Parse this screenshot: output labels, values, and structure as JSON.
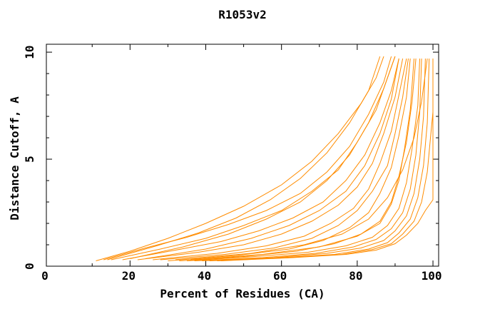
{
  "chart_data": {
    "type": "line",
    "title": "R1053v2",
    "xlabel": "Percent of Residues (CA)",
    "ylabel": "Distance Cutoff, A",
    "xlim": [
      -2.1,
      101.5
    ],
    "ylim": [
      0,
      10.37
    ],
    "x_major_ticks": [
      0,
      20,
      40,
      60,
      80,
      100
    ],
    "x_minor_ticks": [
      10,
      30,
      50,
      70,
      90
    ],
    "y_major_ticks": [
      0,
      5,
      10
    ],
    "y_minor_ticks": [
      1,
      2,
      3,
      4,
      6,
      7,
      8,
      9
    ],
    "grid": false,
    "legend": "none",
    "line_color": "#FF8C00",
    "axis_color": "#000000",
    "background_color": "#FFFFFF",
    "curves": [
      [
        [
          11,
          0.25
        ],
        [
          20,
          0.7
        ],
        [
          30,
          1.3
        ],
        [
          40,
          2.0
        ],
        [
          50,
          2.8
        ],
        [
          60,
          3.8
        ],
        [
          68,
          4.9
        ],
        [
          75,
          6.2
        ],
        [
          81,
          7.6
        ],
        [
          85,
          8.8
        ],
        [
          87,
          9.8
        ]
      ],
      [
        [
          13,
          0.3
        ],
        [
          24,
          0.85
        ],
        [
          35,
          1.35
        ],
        [
          46,
          1.95
        ],
        [
          56,
          2.6
        ],
        [
          65,
          3.4
        ],
        [
          72,
          4.4
        ],
        [
          78,
          5.6
        ],
        [
          83,
          7.1
        ],
        [
          87,
          8.6
        ],
        [
          89,
          9.8
        ]
      ],
      [
        [
          14,
          0.3
        ],
        [
          27,
          0.95
        ],
        [
          38,
          1.55
        ],
        [
          48,
          2.25
        ],
        [
          57,
          3.1
        ],
        [
          65,
          4.1
        ],
        [
          72,
          5.3
        ],
        [
          78,
          6.7
        ],
        [
          83,
          8.2
        ],
        [
          86,
          9.8
        ]
      ],
      [
        [
          15,
          0.3
        ],
        [
          28,
          0.8
        ],
        [
          40,
          1.3
        ],
        [
          50,
          1.9
        ],
        [
          60,
          2.6
        ],
        [
          68,
          3.5
        ],
        [
          75,
          4.5
        ],
        [
          80,
          5.8
        ],
        [
          85,
          7.3
        ],
        [
          88,
          8.8
        ],
        [
          90,
          9.8
        ]
      ],
      [
        [
          18,
          0.3
        ],
        [
          32,
          0.75
        ],
        [
          44,
          1.15
        ],
        [
          54,
          1.65
        ],
        [
          63,
          2.25
        ],
        [
          71,
          3.0
        ],
        [
          77,
          4.0
        ],
        [
          82,
          5.2
        ],
        [
          86,
          6.7
        ],
        [
          89,
          8.2
        ],
        [
          91,
          9.7
        ]
      ],
      [
        [
          20,
          0.35
        ],
        [
          34,
          0.9
        ],
        [
          46,
          1.5
        ],
        [
          56,
          2.2
        ],
        [
          65,
          3.0
        ],
        [
          72,
          4.0
        ],
        [
          78,
          5.2
        ],
        [
          83,
          6.7
        ],
        [
          87,
          8.3
        ],
        [
          90,
          9.8
        ]
      ],
      [
        [
          22,
          0.3
        ],
        [
          38,
          0.65
        ],
        [
          50,
          1.0
        ],
        [
          60,
          1.5
        ],
        [
          68,
          2.1
        ],
        [
          75,
          2.85
        ],
        [
          80,
          3.7
        ],
        [
          84,
          4.8
        ],
        [
          87,
          6.2
        ],
        [
          90,
          7.9
        ],
        [
          92,
          9.7
        ]
      ],
      [
        [
          24,
          0.35
        ],
        [
          40,
          0.8
        ],
        [
          52,
          1.3
        ],
        [
          62,
          1.9
        ],
        [
          70,
          2.6
        ],
        [
          77,
          3.5
        ],
        [
          82,
          4.7
        ],
        [
          86,
          6.2
        ],
        [
          89,
          7.8
        ],
        [
          91,
          9.7
        ]
      ],
      [
        [
          26,
          0.3
        ],
        [
          43,
          0.6
        ],
        [
          56,
          0.95
        ],
        [
          66,
          1.4
        ],
        [
          73,
          2.0
        ],
        [
          79,
          2.7
        ],
        [
          83,
          3.6
        ],
        [
          86,
          4.8
        ],
        [
          89,
          6.3
        ],
        [
          91,
          8.0
        ],
        [
          93,
          9.7
        ]
      ],
      [
        [
          28,
          0.3
        ],
        [
          45,
          0.55
        ],
        [
          58,
          0.85
        ],
        [
          68,
          1.3
        ],
        [
          75,
          1.9
        ],
        [
          80,
          2.6
        ],
        [
          84,
          3.5
        ],
        [
          88,
          4.7
        ],
        [
          90,
          6.2
        ],
        [
          92,
          7.9
        ],
        [
          93.5,
          9.7
        ]
      ],
      [
        [
          30,
          0.25
        ],
        [
          48,
          0.5
        ],
        [
          62,
          0.8
        ],
        [
          71,
          1.2
        ],
        [
          78,
          1.8
        ],
        [
          83,
          2.5
        ],
        [
          86,
          3.4
        ],
        [
          89,
          4.6
        ],
        [
          91,
          6.1
        ],
        [
          93,
          7.9
        ],
        [
          94,
          9.7
        ]
      ],
      [
        [
          32,
          0.3
        ],
        [
          52,
          0.6
        ],
        [
          66,
          1.0
        ],
        [
          76,
          1.5
        ],
        [
          83,
          2.2
        ],
        [
          88,
          3.2
        ],
        [
          92,
          4.5
        ],
        [
          95,
          6.0
        ],
        [
          97,
          7.7
        ],
        [
          98.5,
          9.7
        ]
      ],
      [
        [
          33,
          0.25
        ],
        [
          50,
          0.45
        ],
        [
          64,
          0.7
        ],
        [
          74,
          1.05
        ],
        [
          81,
          1.5
        ],
        [
          86,
          2.1
        ],
        [
          89,
          3.0
        ],
        [
          91,
          4.2
        ],
        [
          93,
          5.8
        ],
        [
          94.5,
          7.7
        ],
        [
          95.5,
          9.7
        ]
      ],
      [
        [
          35,
          0.25
        ],
        [
          53,
          0.45
        ],
        [
          67,
          0.65
        ],
        [
          77,
          0.95
        ],
        [
          84,
          1.35
        ],
        [
          88,
          1.9
        ],
        [
          91,
          2.7
        ],
        [
          93,
          3.9
        ],
        [
          94.5,
          5.5
        ],
        [
          96,
          7.5
        ],
        [
          96.5,
          9.7
        ]
      ],
      [
        [
          36,
          0.3
        ],
        [
          55,
          0.55
        ],
        [
          70,
          0.9
        ],
        [
          80,
          1.4
        ],
        [
          86,
          2.0
        ],
        [
          89,
          2.9
        ],
        [
          91,
          4.0
        ],
        [
          92.5,
          5.5
        ],
        [
          94,
          7.3
        ],
        [
          95,
          9.7
        ]
      ],
      [
        [
          37,
          0.25
        ],
        [
          55,
          0.4
        ],
        [
          69,
          0.6
        ],
        [
          79,
          0.9
        ],
        [
          85,
          1.25
        ],
        [
          89,
          1.75
        ],
        [
          92,
          2.5
        ],
        [
          94,
          3.6
        ],
        [
          95.5,
          5.2
        ],
        [
          96.5,
          7.2
        ],
        [
          97,
          9.7
        ]
      ],
      [
        [
          39,
          0.25
        ],
        [
          58,
          0.4
        ],
        [
          72,
          0.6
        ],
        [
          81,
          0.85
        ],
        [
          87,
          1.2
        ],
        [
          90,
          1.65
        ],
        [
          93,
          2.35
        ],
        [
          95,
          3.4
        ],
        [
          96.5,
          5.0
        ],
        [
          97.5,
          7.0
        ],
        [
          98,
          9.7
        ]
      ],
      [
        [
          41,
          0.25
        ],
        [
          60,
          0.4
        ],
        [
          74,
          0.55
        ],
        [
          83,
          0.8
        ],
        [
          88,
          1.1
        ],
        [
          91,
          1.55
        ],
        [
          94,
          2.2
        ],
        [
          96,
          3.2
        ],
        [
          97.5,
          4.7
        ],
        [
          98.5,
          6.7
        ],
        [
          99,
          9.7
        ]
      ],
      [
        [
          43,
          0.25
        ],
        [
          62,
          0.4
        ],
        [
          76,
          0.55
        ],
        [
          84,
          0.78
        ],
        [
          89,
          1.05
        ],
        [
          92,
          1.5
        ],
        [
          95,
          2.1
        ],
        [
          97,
          3.0
        ],
        [
          98.5,
          4.4
        ],
        [
          99.5,
          6.3
        ],
        [
          100,
          7.2
        ],
        [
          100,
          9.7
        ]
      ],
      [
        [
          44,
          0.25
        ],
        [
          63,
          0.4
        ],
        [
          77,
          0.55
        ],
        [
          85,
          0.75
        ],
        [
          90,
          1.05
        ],
        [
          93,
          1.45
        ],
        [
          96,
          2.0
        ],
        [
          98,
          2.6
        ],
        [
          100,
          3.1
        ],
        [
          100,
          9.7
        ]
      ]
    ]
  }
}
